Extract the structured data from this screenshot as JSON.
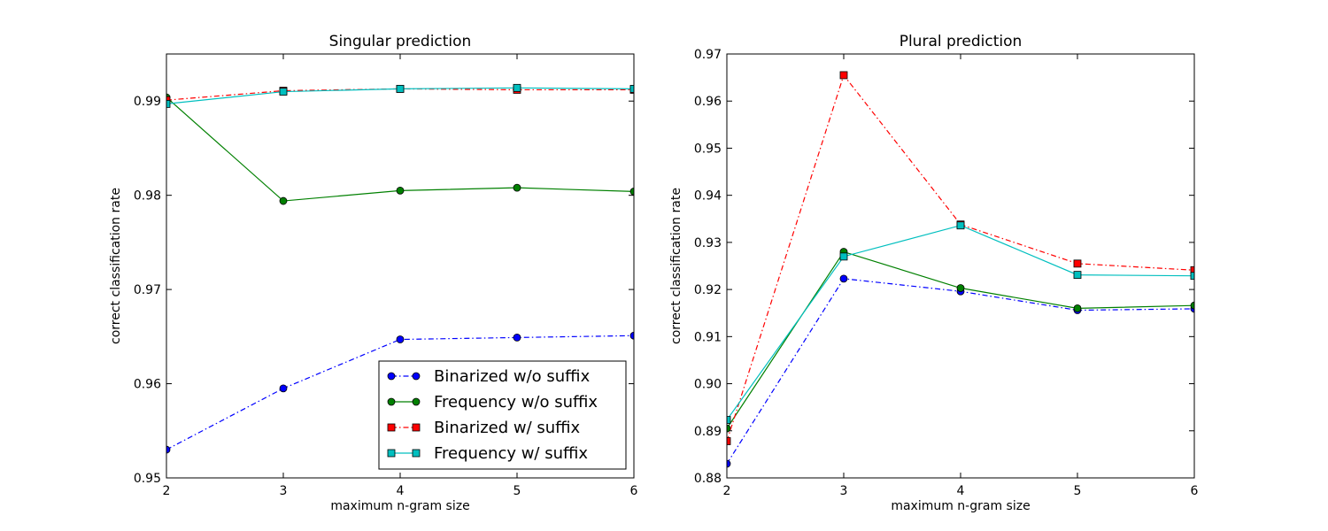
{
  "chart_data": [
    {
      "type": "line",
      "title": "Singular prediction",
      "xlabel": "maximum n-gram size",
      "ylabel": "correct classification rate",
      "x": [
        2,
        3,
        4,
        5,
        6
      ],
      "xticks": [
        "2",
        "3",
        "4",
        "5",
        "6"
      ],
      "xlim": [
        2,
        6
      ],
      "ylim": [
        0.95,
        0.995
      ],
      "yticks": [
        "0.95",
        "0.96",
        "0.97",
        "0.98",
        "0.99"
      ],
      "grid": false,
      "legend": "lower-right",
      "series": [
        {
          "name": "Binarized w/o suffix",
          "values": [
            0.953,
            0.9595,
            0.9647,
            0.9649,
            0.9651
          ],
          "color": "#0000ff",
          "marker": "circle",
          "linestyle": "dashdot"
        },
        {
          "name": "Frequency w/o suffix",
          "values": [
            0.9904,
            0.9794,
            0.9805,
            0.9808,
            0.9804
          ],
          "color": "#008000",
          "marker": "circle",
          "linestyle": "solid"
        },
        {
          "name": "Binarized w/ suffix",
          "values": [
            0.9901,
            0.9911,
            0.9913,
            0.9912,
            0.9912
          ],
          "color": "#ff0000",
          "marker": "square",
          "linestyle": "dashdot"
        },
        {
          "name": "Frequency w/ suffix",
          "values": [
            0.9897,
            0.991,
            0.9913,
            0.9914,
            0.9913
          ],
          "color": "#00bfbf",
          "marker": "square",
          "linestyle": "solid"
        }
      ]
    },
    {
      "type": "line",
      "title": "Plural prediction",
      "xlabel": "maximum n-gram size",
      "ylabel": "correct classification rate",
      "x": [
        2,
        3,
        4,
        5,
        6
      ],
      "xticks": [
        "2",
        "3",
        "4",
        "5",
        "6"
      ],
      "xlim": [
        2,
        6
      ],
      "ylim": [
        0.88,
        0.97
      ],
      "yticks": [
        "0.88",
        "0.89",
        "0.90",
        "0.91",
        "0.92",
        "0.93",
        "0.94",
        "0.95",
        "0.96",
        "0.97"
      ],
      "grid": false,
      "series": [
        {
          "name": "Binarized w/o suffix",
          "values": [
            0.883,
            0.9223,
            0.9196,
            0.9156,
            0.9159
          ],
          "color": "#0000ff",
          "marker": "circle",
          "linestyle": "dashdot"
        },
        {
          "name": "Frequency w/o suffix",
          "values": [
            0.8905,
            0.928,
            0.9203,
            0.916,
            0.9166
          ],
          "color": "#008000",
          "marker": "circle",
          "linestyle": "solid"
        },
        {
          "name": "Binarized w/ suffix",
          "values": [
            0.8878,
            0.9655,
            0.9338,
            0.9255,
            0.9241
          ],
          "color": "#ff0000",
          "marker": "square",
          "linestyle": "dashdot"
        },
        {
          "name": "Frequency w/ suffix",
          "values": [
            0.8923,
            0.927,
            0.9336,
            0.9231,
            0.9229
          ],
          "color": "#00bfbf",
          "marker": "square",
          "linestyle": "solid"
        }
      ]
    }
  ]
}
